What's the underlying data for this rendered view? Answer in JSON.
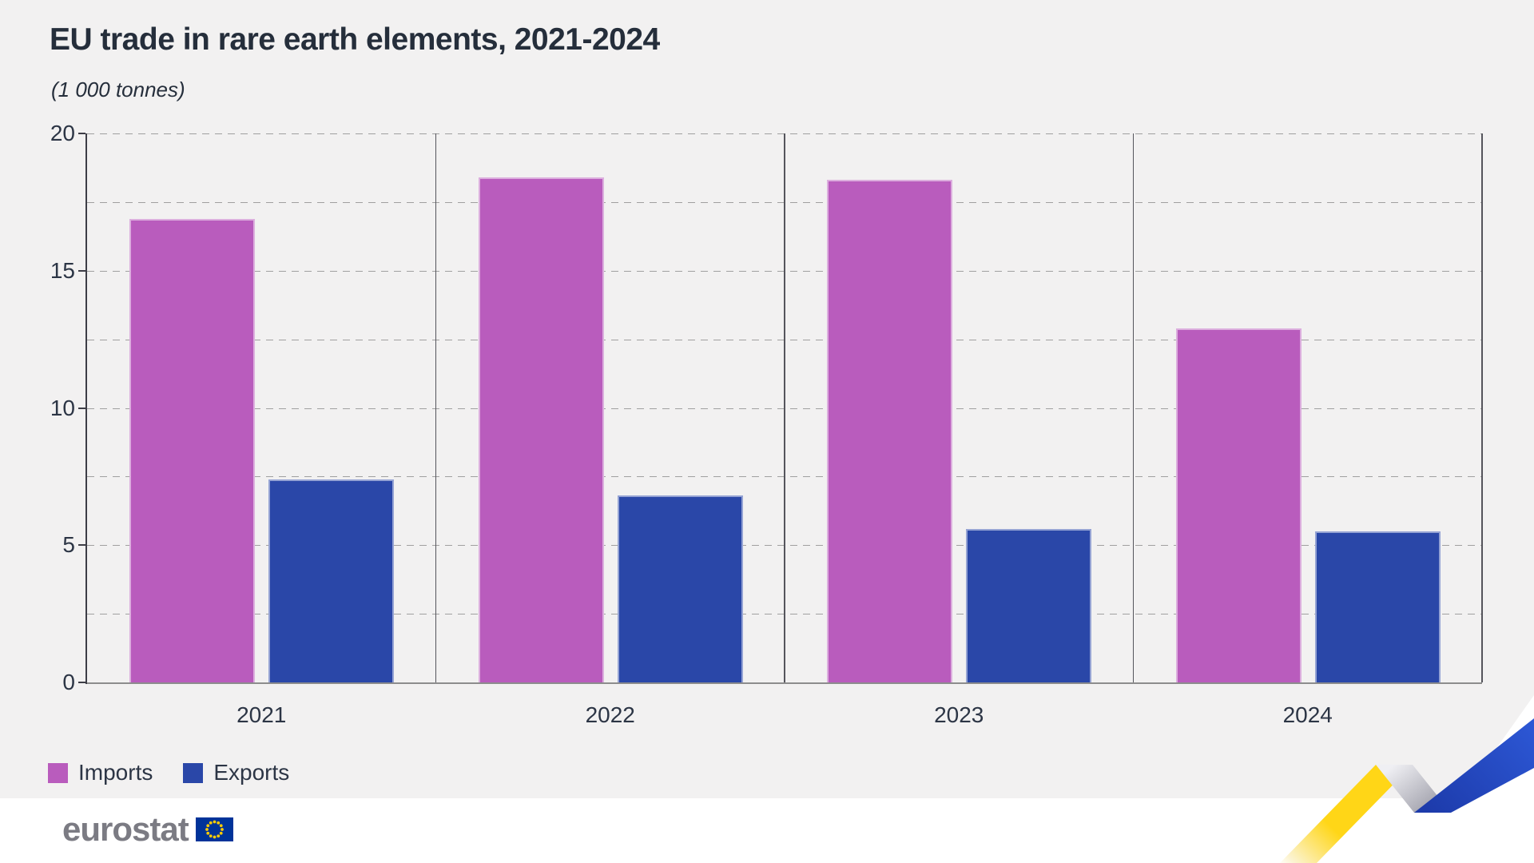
{
  "header": {
    "title": "EU trade in rare earth elements, 2021-2024",
    "subtitle": "(1 000 tonnes)"
  },
  "chart_data": {
    "type": "bar",
    "title": "EU trade in rare earth elements, 2021-2024",
    "unit": "(1 000 tonnes)",
    "categories": [
      "2021",
      "2022",
      "2023",
      "2024"
    ],
    "series": [
      {
        "name": "Imports",
        "color": "#b95cbd",
        "values": [
          16.9,
          18.4,
          18.3,
          12.9
        ]
      },
      {
        "name": "Exports",
        "color": "#2a47a8",
        "values": [
          7.4,
          6.8,
          5.6,
          5.5
        ]
      }
    ],
    "xlabel": "",
    "ylabel": "",
    "ylim": [
      0,
      20
    ],
    "ytick_step": 5,
    "grid_step": 2.5,
    "grid": "horizontal dashed",
    "panel_separators": true,
    "legend_position": "bottom-left"
  },
  "footer": {
    "logo_text": "eurostat",
    "flag_icon": "eu-flag-icon"
  },
  "colors": {
    "background": "#f2f1f1",
    "text": "#2c3545",
    "grid": "#a0a0a0",
    "axis": "#3d3d46",
    "baseline": "#8d8d8d",
    "imports": "#b95cbd",
    "exports": "#2a47a8",
    "logo_gray": "#7b7b83",
    "eu_blue": "#003399",
    "eu_gold": "#ffcc00",
    "ribbon_yellow": "#ffd617",
    "ribbon_silver": "#b4b4bd",
    "ribbon_blue": "#2553cc"
  }
}
